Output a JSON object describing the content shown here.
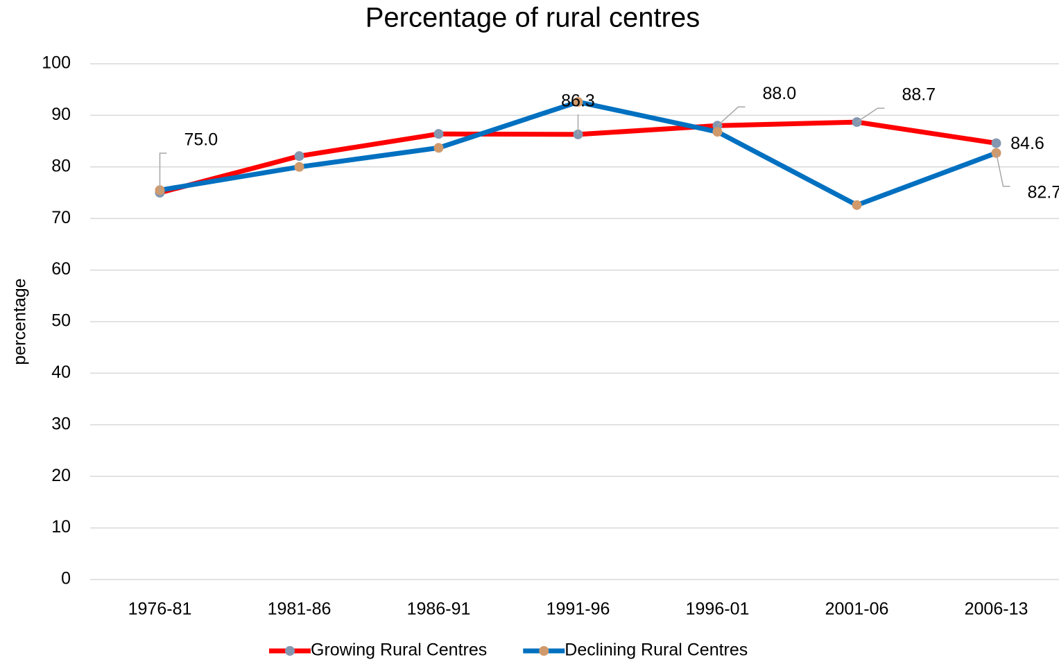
{
  "chart_data": {
    "type": "line",
    "title": "Percentage of rural centres",
    "y_label": "percentage",
    "categories": [
      "1976-81",
      "1981-86",
      "1986-91",
      "1991-96",
      "1996-01",
      "2001-06",
      "2006-13"
    ],
    "series": [
      {
        "name": "Growing Rural Centres",
        "color": "#ff0000",
        "marker_color": "#8497b0",
        "values": [
          75.0,
          82.1,
          86.4,
          86.3,
          88.0,
          88.7,
          84.6
        ],
        "value_labels": [
          "75.0",
          null,
          null,
          "86.3",
          "88.0",
          "88.7",
          "84.6"
        ]
      },
      {
        "name": "Declining Rural Centres",
        "color": "#0070c0",
        "marker_color": "#d09a6c",
        "values": [
          75.5,
          80.0,
          83.7,
          92.6,
          86.8,
          72.6,
          82.7
        ],
        "value_labels": [
          null,
          null,
          null,
          null,
          null,
          null,
          "82.7"
        ]
      }
    ],
    "ylim": [
      0,
      100
    ],
    "yticks": [
      0,
      10,
      20,
      30,
      40,
      50,
      60,
      70,
      80,
      90,
      100
    ],
    "grid": true,
    "legend": "bottom"
  }
}
